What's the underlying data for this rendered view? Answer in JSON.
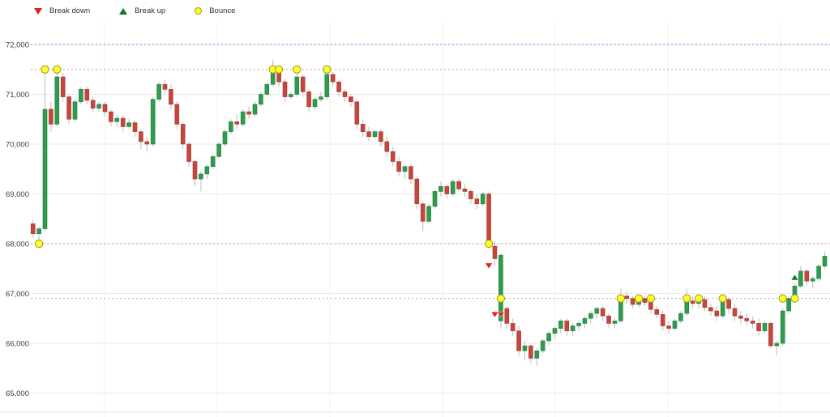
{
  "legend": {
    "items": [
      {
        "label": "Break down",
        "marker": "triangle-down",
        "color": "#dd2222"
      },
      {
        "label": "Break up",
        "marker": "triangle-up",
        "color": "#0e7a24"
      },
      {
        "label": "Bounce",
        "marker": "circle",
        "color": "#ffff2e",
        "border": "#9a9a10"
      }
    ]
  },
  "chart_data": {
    "type": "candlestick",
    "title": "",
    "xlabel": "",
    "ylabel": "",
    "legend_position": "top-left",
    "grid": true,
    "y_axis": {
      "ticks": [
        {
          "value": 72000,
          "label": "72,000"
        },
        {
          "value": 71000,
          "label": "71,000"
        },
        {
          "value": 70000,
          "label": "70,000"
        },
        {
          "value": 69000,
          "label": "69,000"
        },
        {
          "value": 68000,
          "label": "68,000"
        },
        {
          "value": 67000,
          "label": "67,000"
        },
        {
          "value": 66000,
          "label": "66,000"
        },
        {
          "value": 65000,
          "label": "65,000"
        }
      ],
      "range": [
        64550,
        72300
      ]
    },
    "x_gridlines": [
      129,
      268,
      407,
      546,
      685,
      824,
      963
    ],
    "levels": [
      {
        "name": "level-72000",
        "value": 72000,
        "color": "#7aa4e8",
        "style": "dotted"
      },
      {
        "name": "level-71500",
        "value": 71500,
        "color": "#f2a89e",
        "style": "dotted"
      },
      {
        "name": "level-68000",
        "value": 68000,
        "color": "#f2a89e",
        "style": "dotted"
      },
      {
        "name": "level-66900",
        "value": 66900,
        "color": "#a6cec3",
        "style": "dotted"
      }
    ],
    "candles": [
      [
        68400,
        68480,
        68120,
        68200
      ],
      [
        68200,
        68350,
        67950,
        68300
      ],
      [
        68300,
        71550,
        68250,
        70700
      ],
      [
        70700,
        70850,
        70250,
        70400
      ],
      [
        70400,
        71500,
        70350,
        71350
      ],
      [
        71350,
        71430,
        70850,
        70950
      ],
      [
        70950,
        71000,
        70400,
        70500
      ],
      [
        70500,
        70900,
        70450,
        70850
      ],
      [
        70850,
        71150,
        70800,
        71100
      ],
      [
        71100,
        71150,
        70800,
        70880
      ],
      [
        70880,
        70950,
        70650,
        70720
      ],
      [
        70720,
        70850,
        70650,
        70800
      ],
      [
        70800,
        70850,
        70550,
        70650
      ],
      [
        70650,
        70700,
        70350,
        70450
      ],
      [
        70450,
        70600,
        70350,
        70520
      ],
      [
        70520,
        70580,
        70250,
        70350
      ],
      [
        70350,
        70500,
        70300,
        70430
      ],
      [
        70430,
        70480,
        70150,
        70250
      ],
      [
        70250,
        70300,
        69900,
        70050
      ],
      [
        70050,
        70150,
        69850,
        70000
      ],
      [
        70000,
        70950,
        69950,
        70900
      ],
      [
        70900,
        71250,
        70850,
        71200
      ],
      [
        71200,
        71300,
        71000,
        71100
      ],
      [
        71100,
        71200,
        70700,
        70800
      ],
      [
        70800,
        70850,
        70300,
        70400
      ],
      [
        70400,
        70450,
        69900,
        70000
      ],
      [
        70000,
        70050,
        69550,
        69650
      ],
      [
        69650,
        69700,
        69150,
        69300
      ],
      [
        69300,
        69450,
        69050,
        69400
      ],
      [
        69400,
        69600,
        69300,
        69550
      ],
      [
        69550,
        69800,
        69500,
        69750
      ],
      [
        69750,
        70050,
        69700,
        70000
      ],
      [
        70000,
        70300,
        69950,
        70250
      ],
      [
        70250,
        70500,
        70200,
        70450
      ],
      [
        70450,
        70600,
        70300,
        70400
      ],
      [
        70400,
        70700,
        70350,
        70650
      ],
      [
        70650,
        70750,
        70500,
        70600
      ],
      [
        70600,
        70850,
        70550,
        70800
      ],
      [
        70800,
        71050,
        70750,
        71000
      ],
      [
        71000,
        71250,
        70950,
        71200
      ],
      [
        71200,
        71700,
        71150,
        71450
      ],
      [
        71450,
        71550,
        71150,
        71250
      ],
      [
        71250,
        71300,
        70850,
        70950
      ],
      [
        70950,
        71050,
        70900,
        71000
      ],
      [
        71000,
        71500,
        70950,
        71350
      ],
      [
        71350,
        71400,
        70950,
        71050
      ],
      [
        71050,
        71100,
        70650,
        70750
      ],
      [
        70750,
        70950,
        70700,
        70900
      ],
      [
        70900,
        71050,
        70850,
        70950
      ],
      [
        70950,
        71550,
        70900,
        71400
      ],
      [
        71400,
        71450,
        71150,
        71250
      ],
      [
        71250,
        71300,
        70950,
        71050
      ],
      [
        71050,
        71100,
        70850,
        70950
      ],
      [
        70950,
        71000,
        70750,
        70850
      ],
      [
        70850,
        70900,
        70300,
        70400
      ],
      [
        70400,
        70500,
        70150,
        70250
      ],
      [
        70250,
        70350,
        70050,
        70150
      ],
      [
        70150,
        70300,
        70100,
        70250
      ],
      [
        70250,
        70300,
        69950,
        70050
      ],
      [
        70050,
        70150,
        69750,
        69850
      ],
      [
        69850,
        69950,
        69550,
        69650
      ],
      [
        69650,
        69750,
        69350,
        69450
      ],
      [
        69450,
        69600,
        69300,
        69550
      ],
      [
        69550,
        69600,
        69200,
        69300
      ],
      [
        69300,
        69350,
        68700,
        68800
      ],
      [
        68800,
        68850,
        68250,
        68450
      ],
      [
        68450,
        68800,
        68400,
        68750
      ],
      [
        68750,
        69100,
        68700,
        69050
      ],
      [
        69050,
        69250,
        68950,
        69150
      ],
      [
        69150,
        69200,
        68900,
        69000
      ],
      [
        69000,
        69300,
        68950,
        69250
      ],
      [
        69250,
        69300,
        69050,
        69100
      ],
      [
        69100,
        69200,
        68950,
        69050
      ],
      [
        69050,
        69100,
        68800,
        68900
      ],
      [
        68900,
        69000,
        68700,
        68800
      ],
      [
        68800,
        69050,
        68750,
        69000
      ],
      [
        69000,
        69050,
        67900,
        68000
      ],
      [
        67950,
        68050,
        67550,
        67700
      ],
      [
        66450,
        67820,
        66300,
        67770
      ],
      [
        66700,
        66750,
        66300,
        66400
      ],
      [
        66400,
        66500,
        66150,
        66250
      ],
      [
        66250,
        66350,
        65750,
        65850
      ],
      [
        65850,
        66050,
        65650,
        65950
      ],
      [
        65950,
        66000,
        65600,
        65700
      ],
      [
        65700,
        65900,
        65550,
        65850
      ],
      [
        65850,
        66100,
        65800,
        66050
      ],
      [
        66050,
        66250,
        65950,
        66200
      ],
      [
        66200,
        66350,
        66100,
        66300
      ],
      [
        66300,
        66500,
        66200,
        66450
      ],
      [
        66450,
        66500,
        66150,
        66250
      ],
      [
        66250,
        66400,
        66150,
        66350
      ],
      [
        66350,
        66450,
        66250,
        66400
      ],
      [
        66400,
        66550,
        66300,
        66500
      ],
      [
        66500,
        66650,
        66400,
        66600
      ],
      [
        66600,
        66750,
        66500,
        66700
      ],
      [
        66700,
        66750,
        66450,
        66550
      ],
      [
        66550,
        66600,
        66300,
        66400
      ],
      [
        66400,
        66500,
        66300,
        66450
      ],
      [
        66450,
        67100,
        66400,
        66950
      ],
      [
        66950,
        67050,
        66800,
        66900
      ],
      [
        66900,
        66950,
        66700,
        66780
      ],
      [
        66780,
        66950,
        66720,
        66900
      ],
      [
        66900,
        66950,
        66750,
        66820
      ],
      [
        66820,
        66930,
        66600,
        66680
      ],
      [
        66680,
        66750,
        66500,
        66580
      ],
      [
        66580,
        66650,
        66250,
        66350
      ],
      [
        66350,
        66450,
        66200,
        66300
      ],
      [
        66300,
        66500,
        66250,
        66450
      ],
      [
        66450,
        66650,
        66400,
        66600
      ],
      [
        66600,
        67100,
        66550,
        66850
      ],
      [
        66850,
        66950,
        66700,
        66800
      ],
      [
        66800,
        66930,
        66700,
        66880
      ],
      [
        66880,
        66950,
        66650,
        66720
      ],
      [
        66720,
        66800,
        66550,
        66650
      ],
      [
        66650,
        66750,
        66450,
        66550
      ],
      [
        66550,
        66950,
        66500,
        66880
      ],
      [
        66880,
        66920,
        66600,
        66700
      ],
      [
        66700,
        66780,
        66450,
        66550
      ],
      [
        66550,
        66650,
        66400,
        66500
      ],
      [
        66500,
        66600,
        66350,
        66450
      ],
      [
        66450,
        66550,
        66300,
        66400
      ],
      [
        66400,
        66500,
        66150,
        66250
      ],
      [
        66250,
        66450,
        66200,
        66400
      ],
      [
        66400,
        66450,
        65900,
        65950
      ],
      [
        65950,
        66050,
        65750,
        66000
      ],
      [
        66000,
        66700,
        65950,
        66650
      ],
      [
        66650,
        66950,
        66600,
        66900
      ],
      [
        66900,
        67200,
        66850,
        67150
      ],
      [
        67150,
        67550,
        67100,
        67450
      ],
      [
        67450,
        67500,
        67150,
        67250
      ],
      [
        67250,
        67350,
        67100,
        67300
      ],
      [
        67300,
        67600,
        67250,
        67550
      ],
      [
        67550,
        67850,
        67500,
        67750
      ]
    ],
    "markers": {
      "bounce": [
        {
          "i": 1,
          "v": 68000
        },
        {
          "i": 2,
          "v": 71500
        },
        {
          "i": 4,
          "v": 71500
        },
        {
          "i": 40,
          "v": 71500
        },
        {
          "i": 41,
          "v": 71500
        },
        {
          "i": 44,
          "v": 71500
        },
        {
          "i": 49,
          "v": 71500
        },
        {
          "i": 76,
          "v": 68000
        },
        {
          "i": 78,
          "v": 66900
        },
        {
          "i": 98,
          "v": 66900
        },
        {
          "i": 101,
          "v": 66900
        },
        {
          "i": 103,
          "v": 66900
        },
        {
          "i": 109,
          "v": 66900
        },
        {
          "i": 111,
          "v": 66900
        },
        {
          "i": 115,
          "v": 66900
        },
        {
          "i": 125,
          "v": 66900
        },
        {
          "i": 127,
          "v": 66900
        }
      ],
      "break_down": [
        {
          "i": 76,
          "v": 67560
        },
        {
          "i": 77,
          "v": 66580
        },
        {
          "i": 78,
          "v": 66580
        }
      ],
      "break_up": [
        {
          "i": 127,
          "v": 67320
        }
      ]
    },
    "colors": {
      "up": "#2f9b4e",
      "down": "#c4473d",
      "up_border": "#23813e",
      "down_border": "#a83a31",
      "wick": "#bdbdbd",
      "grid_h": "#eaeaea",
      "grid_v": "#f2f2f2",
      "tick_text": "#3d3d3d",
      "break_down": "#dd2222",
      "break_up": "#0e7a24",
      "bounce": "#ffff2e",
      "bounce_border": "#9a9a10",
      "background": "#ffffff"
    }
  }
}
